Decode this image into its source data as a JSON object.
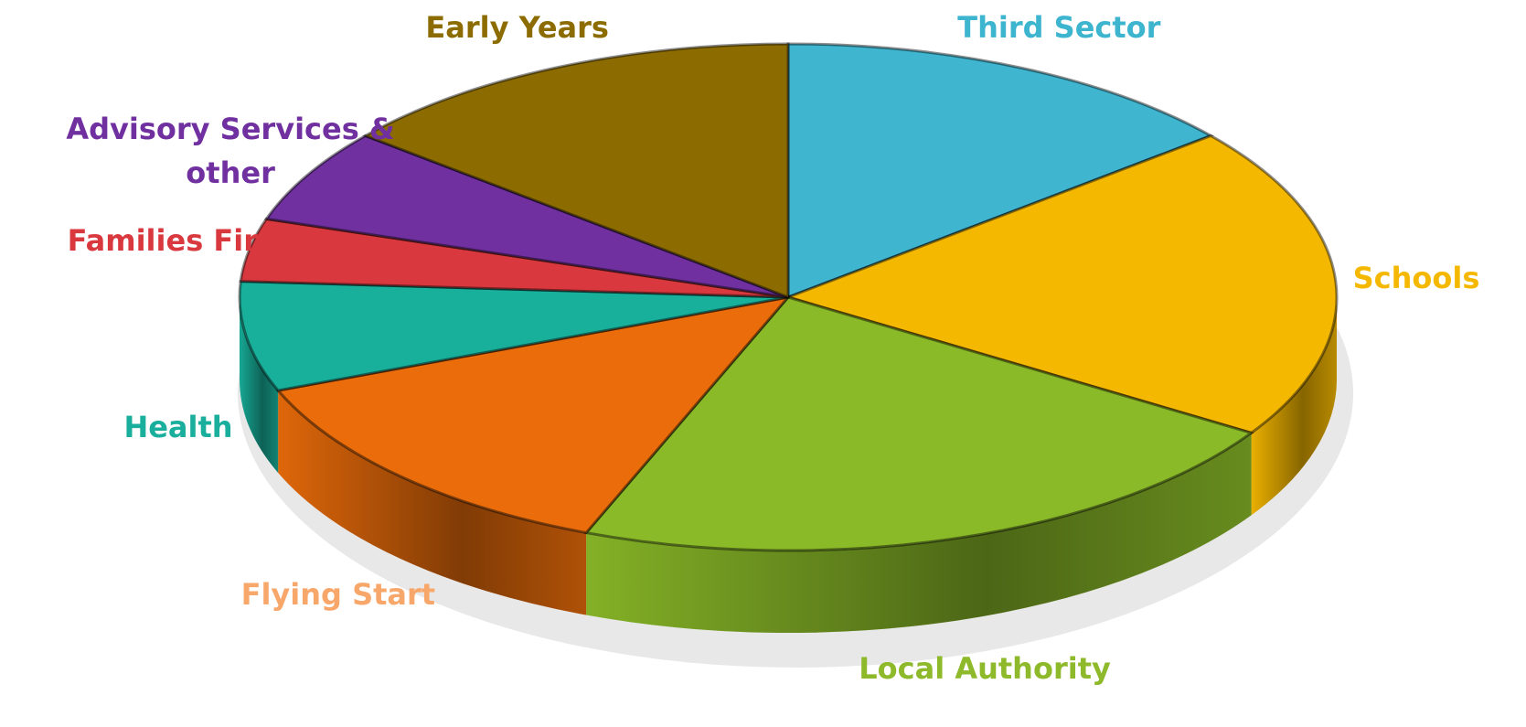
{
  "chart_data": {
    "type": "pie",
    "categories": [
      "Third Sector",
      "Schools",
      "Local Authority",
      "Flying Start",
      "Health",
      "Families First",
      "Advisory Services & other",
      "Early Years"
    ],
    "values": [
      14,
      20,
      22,
      13,
      7,
      4,
      6,
      14
    ],
    "colors": [
      "#3fb5cf",
      "#f5b800",
      "#8aba28",
      "#ea6c0a",
      "#18b09b",
      "#d9393e",
      "#7030a0",
      "#8c6c00"
    ],
    "label_colors": [
      "#3db5cf",
      "#f5b800",
      "#8db92b",
      "#f8a76b",
      "#1aae9c",
      "#d9393e",
      "#7030a0",
      "#8c6c00"
    ]
  }
}
